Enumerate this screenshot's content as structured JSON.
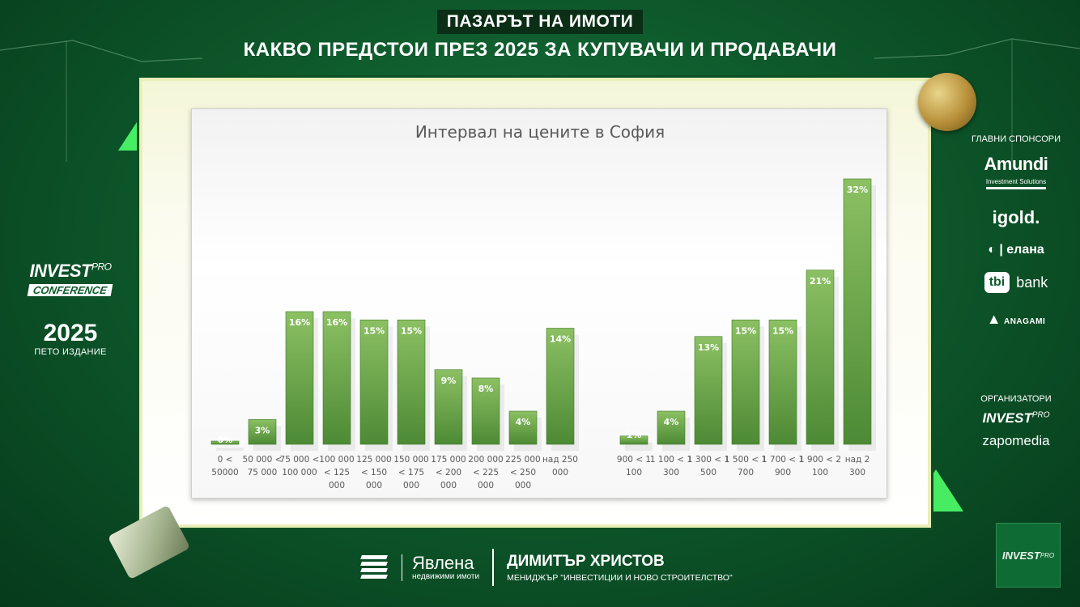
{
  "header": {
    "kicker": "ПАЗАРЪТ НА ИМОТИ",
    "headline": "КАКВО ПРЕДСТОИ ПРЕЗ 2025 ЗА КУПУВАЧИ И ПРОДАВАЧИ"
  },
  "left_brand": {
    "line1": "INVEST",
    "line1_sup": "PRO",
    "line2": "CONFERENCE",
    "year": "2025",
    "edition": "ПЕТО ИЗДАНИЕ"
  },
  "sponsors": {
    "label": "ГЛАВНИ СПОНСОРИ",
    "amundi": "Amundi",
    "amundi_sub": "Investment Solutions",
    "igold": "igold.",
    "elana": "| елана",
    "tbi_box": "tbi",
    "tbi_word": "bank",
    "anagami": "ANAGAMI"
  },
  "organizers": {
    "label": "ОРГАНИЗАТОРИ",
    "org1": "INVEST",
    "org1_sup": "PRO",
    "org2": "zapomedia"
  },
  "footer": {
    "company_name": "Явлена",
    "company_sub": "недвижими имоти",
    "speaker_name": "ДИМИТЪР ХРИСТОВ",
    "speaker_role": "МЕНИДЖЪР \"ИНВЕСТИЦИИ И НОВО СТРОИТЕЛСТВО\""
  },
  "corner_badge": {
    "text": "INVEST",
    "sup": "PRO"
  },
  "colors": {
    "bar": "#6aa84f",
    "bar_top": "#8cc063",
    "bar_bottom": "#4d8a35"
  },
  "chart_data": {
    "type": "bar",
    "title": "Интервал на цените в София",
    "value_format": "percent",
    "groups": [
      {
        "categories": [
          [
            "0 <",
            "50000"
          ],
          [
            "50 000 <",
            "75 000"
          ],
          [
            "75 000 <",
            "100 000"
          ],
          [
            "100 000",
            "< 125",
            "000"
          ],
          [
            "125 000",
            "< 150",
            "000"
          ],
          [
            "150 000",
            "< 175",
            "000"
          ],
          [
            "175 000",
            "< 200",
            "000"
          ],
          [
            "200 000",
            "< 225",
            "000"
          ],
          [
            "225 000",
            "< 250",
            "000"
          ],
          [
            "над 250",
            "000"
          ]
        ],
        "values": [
          0,
          3,
          16,
          16,
          15,
          15,
          9,
          8,
          4,
          14
        ],
        "labels": [
          "0%",
          "3%",
          "16%",
          "16%",
          "15%",
          "15%",
          "9%",
          "8%",
          "4%",
          "14%"
        ]
      },
      {
        "categories": [
          [
            "900 < 1",
            "100"
          ],
          [
            "1 100 < 1",
            "300"
          ],
          [
            "1 300 < 1",
            "500"
          ],
          [
            "1 500 < 1",
            "700"
          ],
          [
            "1 700 < 1",
            "900"
          ],
          [
            "1 900 < 2",
            "100"
          ],
          [
            "над 2",
            "300"
          ]
        ],
        "values": [
          1,
          4,
          13,
          15,
          15,
          21,
          32
        ],
        "labels": [
          "1%",
          "4%",
          "13%",
          "15%",
          "15%",
          "21%",
          "32%"
        ]
      }
    ],
    "ylim": [
      0,
      32
    ],
    "grid": false,
    "legend": "none"
  }
}
